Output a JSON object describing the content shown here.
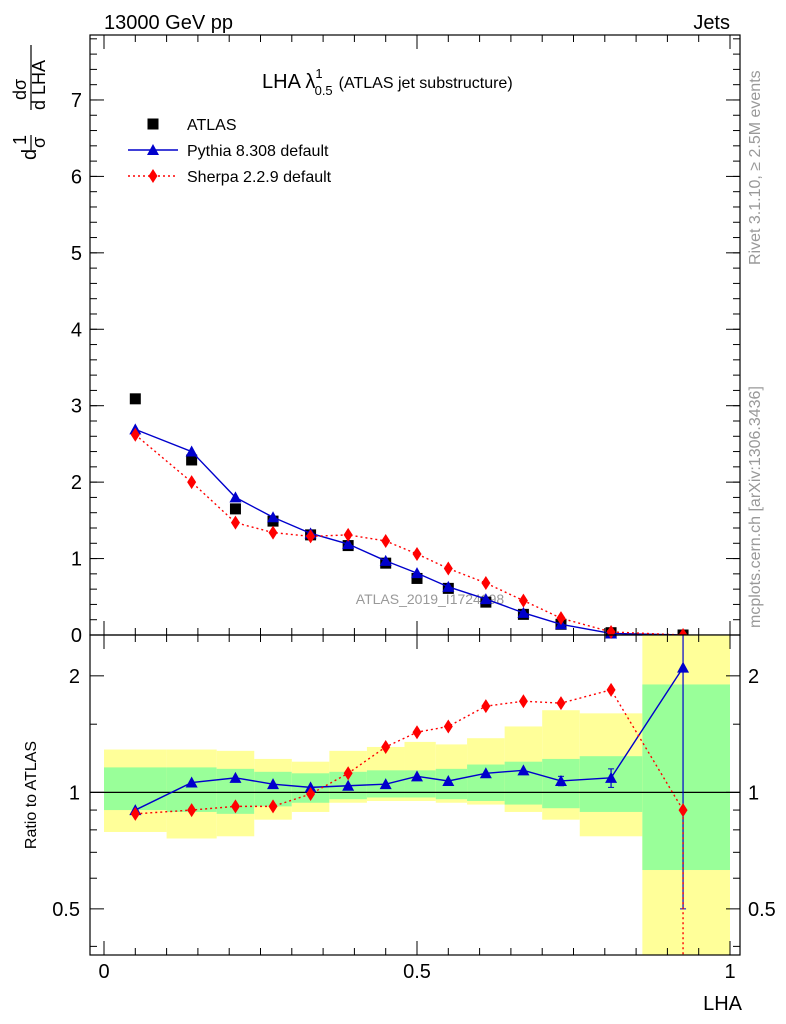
{
  "header": {
    "left": "13000 GeV pp",
    "right": "Jets"
  },
  "side_text": {
    "rivet": "Rivet 3.1.10, ≥ 2.5M events",
    "mcplots": "mcplots.cern.ch [arXiv:1306.3436]"
  },
  "watermark": "ATLAS_2019_I1724098",
  "chart_data": [
    {
      "type": "scatter",
      "panel": "main",
      "title_main": "LHA λ",
      "title_sup": "1",
      "title_sub": "0.5",
      "title_rest": "(ATLAS jet substructure)",
      "ylabel": "1/σ dσ/d LHA",
      "ylim": [
        0,
        7.85
      ],
      "yticks": [
        0,
        1,
        2,
        3,
        4,
        5,
        6,
        7
      ],
      "xlim": [
        0,
        1
      ],
      "legend_position": "top-left",
      "series": [
        {
          "name": "ATLAS",
          "style": "data",
          "color": "#000000",
          "x": [
            0.05,
            0.14,
            0.21,
            0.27,
            0.33,
            0.39,
            0.45,
            0.5,
            0.55,
            0.61,
            0.67,
            0.73,
            0.81,
            0.925
          ],
          "y": [
            3.09,
            2.29,
            1.65,
            1.49,
            1.31,
            1.17,
            0.94,
            0.74,
            0.61,
            0.43,
            0.27,
            0.14,
            0.03,
            0.0
          ]
        },
        {
          "name": "Pythia 8.308 default",
          "style": "solid-triangle",
          "color": "#0000cc",
          "x": [
            0.05,
            0.14,
            0.21,
            0.27,
            0.33,
            0.39,
            0.45,
            0.5,
            0.55,
            0.61,
            0.67,
            0.73,
            0.81,
            0.925
          ],
          "y": [
            2.69,
            2.4,
            1.8,
            1.54,
            1.33,
            1.19,
            0.97,
            0.81,
            0.63,
            0.47,
            0.29,
            0.14,
            0.02,
            0.0
          ]
        },
        {
          "name": "Sherpa 2.2.9 default",
          "style": "dotted-diamond",
          "color": "#ff0000",
          "x": [
            0.05,
            0.14,
            0.21,
            0.27,
            0.33,
            0.39,
            0.45,
            0.5,
            0.55,
            0.61,
            0.67,
            0.73,
            0.81,
            0.925
          ],
          "y": [
            2.62,
            2.0,
            1.47,
            1.34,
            1.29,
            1.31,
            1.23,
            1.06,
            0.87,
            0.68,
            0.45,
            0.22,
            0.04,
            0.0
          ]
        }
      ]
    },
    {
      "type": "scatter",
      "panel": "ratio",
      "ylabel": "Ratio to ATLAS",
      "xlabel": "LHA",
      "ylog": true,
      "ylim": [
        0.38,
        2.55
      ],
      "yticks": [
        0.5,
        1,
        2
      ],
      "ytick_labels": [
        "0.5",
        "1",
        "2"
      ],
      "xlim": [
        0,
        1
      ],
      "xticks": [
        0,
        0.5,
        1
      ],
      "xtick_labels": [
        "0",
        "0.5",
        "1"
      ],
      "uncertainty_bins": {
        "edges": [
          0,
          0.1,
          0.18,
          0.24,
          0.3,
          0.36,
          0.42,
          0.48,
          0.53,
          0.58,
          0.64,
          0.7,
          0.76,
          0.86,
          1.0
        ],
        "green_low": [
          0.9,
          0.89,
          0.88,
          0.92,
          0.94,
          0.96,
          0.97,
          0.97,
          0.96,
          0.95,
          0.93,
          0.91,
          0.89,
          0.63
        ],
        "green_high": [
          1.16,
          1.16,
          1.15,
          1.13,
          1.12,
          1.13,
          1.14,
          1.14,
          1.15,
          1.18,
          1.2,
          1.22,
          1.24,
          1.9
        ],
        "yellow_low": [
          0.79,
          0.76,
          0.77,
          0.85,
          0.89,
          0.94,
          0.95,
          0.95,
          0.94,
          0.93,
          0.89,
          0.85,
          0.77,
          0.37
        ],
        "yellow_high": [
          1.29,
          1.29,
          1.28,
          1.22,
          1.2,
          1.28,
          1.31,
          1.35,
          1.33,
          1.38,
          1.48,
          1.63,
          1.6,
          2.6
        ],
        "green_color": "#99ff99",
        "yellow_color": "#ffff99"
      },
      "series": [
        {
          "name": "Pythia 8.308 default",
          "style": "solid-triangle",
          "color": "#0000cc",
          "x": [
            0.05,
            0.14,
            0.21,
            0.27,
            0.33,
            0.39,
            0.45,
            0.5,
            0.55,
            0.61,
            0.67,
            0.73,
            0.81,
            0.925
          ],
          "y": [
            0.9,
            1.06,
            1.09,
            1.05,
            1.03,
            1.04,
            1.05,
            1.1,
            1.07,
            1.12,
            1.14,
            1.07,
            1.09,
            2.1
          ],
          "err": [
            0,
            0,
            0,
            0,
            0,
            0,
            0,
            0,
            0,
            0,
            0,
            0.03,
            0.06,
            1.6
          ]
        },
        {
          "name": "Sherpa 2.2.9 default",
          "style": "dotted-diamond",
          "color": "#ff0000",
          "x": [
            0.05,
            0.14,
            0.21,
            0.27,
            0.33,
            0.39,
            0.45,
            0.5,
            0.55,
            0.61,
            0.67,
            0.73,
            0.81,
            0.925
          ],
          "y": [
            0.88,
            0.9,
            0.92,
            0.92,
            0.99,
            1.12,
            1.31,
            1.43,
            1.48,
            1.67,
            1.72,
            1.7,
            1.84,
            0.9
          ],
          "tail_to_bottom": true
        }
      ]
    }
  ]
}
